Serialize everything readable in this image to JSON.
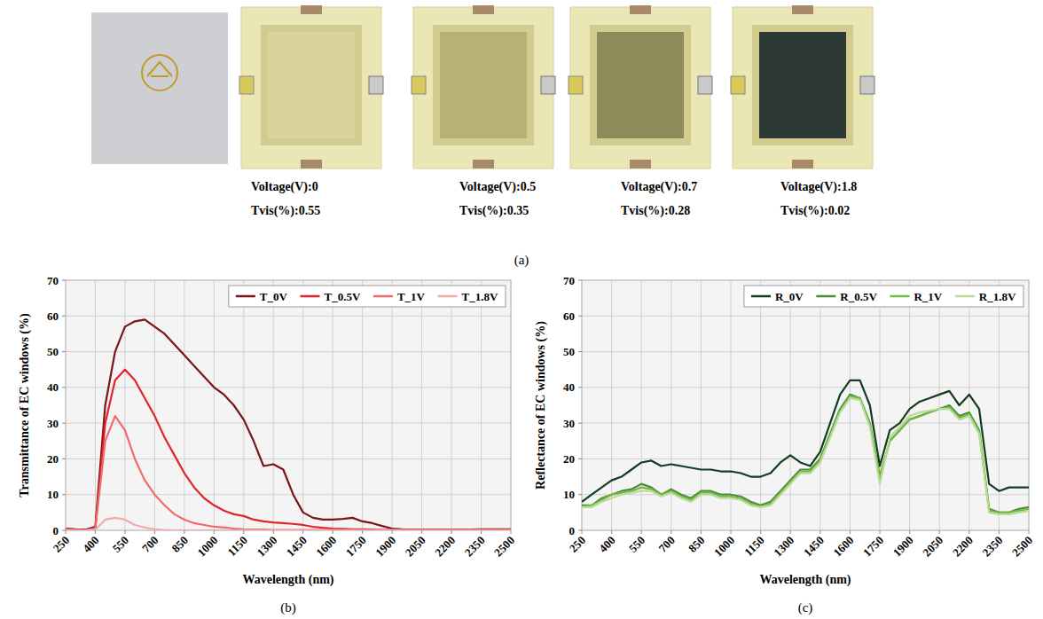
{
  "photos": {
    "caption": "(a)",
    "items": [
      {
        "voltage": "Voltage(V):0",
        "tvis": "Tvis(%):0.55"
      },
      {
        "voltage": "Voltage(V):0.5",
        "tvis": "Tvis(%):0.35"
      },
      {
        "voltage": "Voltage(V):0.7",
        "tvis": "Tvis(%):0.28"
      },
      {
        "voltage": "Voltage(V):1.8",
        "tvis": "Tvis(%):0.02"
      }
    ]
  },
  "chart_data": [
    {
      "type": "line",
      "caption": "(b)",
      "x_label": "Wavelength (nm)",
      "y_label": "Transmittance of EC windows (%)",
      "x": [
        250,
        300,
        350,
        400,
        450,
        500,
        550,
        600,
        650,
        700,
        750,
        800,
        850,
        900,
        950,
        1000,
        1050,
        1100,
        1150,
        1200,
        1250,
        1300,
        1350,
        1400,
        1450,
        1500,
        1550,
        1600,
        1650,
        1700,
        1750,
        1800,
        1850,
        1900,
        1950,
        2000,
        2050,
        2100,
        2150,
        2200,
        2250,
        2300,
        2350,
        2400,
        2450,
        2500
      ],
      "xlim": [
        250,
        2500
      ],
      "xticks": [
        250,
        400,
        550,
        700,
        850,
        1000,
        1150,
        1300,
        1450,
        1600,
        1750,
        1900,
        2050,
        2200,
        2350,
        2500
      ],
      "ylim": [
        0,
        70
      ],
      "yticks": [
        0,
        10,
        20,
        30,
        40,
        50,
        60,
        70
      ],
      "grid": true,
      "legend": "top-right",
      "series": [
        {
          "name": "T_0V",
          "color": "#7a1416",
          "values": [
            0.5,
            0.3,
            0.2,
            1,
            35,
            50,
            57,
            58.5,
            59,
            57,
            55,
            52,
            49,
            46,
            43,
            40,
            38,
            35,
            31,
            25,
            18,
            18.5,
            17,
            10,
            5,
            3.5,
            3,
            3,
            3.2,
            3.5,
            2.5,
            2,
            1.2,
            0.5,
            0.3,
            0.2,
            0.2,
            0.2,
            0.2,
            0.2,
            0.2,
            0.2,
            0.3,
            0.3,
            0.3,
            0.3
          ]
        },
        {
          "name": "T_0.5V",
          "color": "#e3222b",
          "values": [
            0.5,
            0.2,
            0.1,
            0.5,
            30,
            42,
            45,
            42,
            37,
            32,
            26,
            21,
            16,
            12,
            9,
            7,
            5.5,
            4.5,
            4,
            3,
            2.5,
            2.2,
            2,
            1.8,
            1.5,
            1,
            0.7,
            0.5,
            0.4,
            0.3,
            0.3,
            0.2,
            0.1,
            0.1,
            0.1,
            0.1,
            0.1,
            0.1,
            0.1,
            0.1,
            0.1,
            0.1,
            0.1,
            0.1,
            0.1,
            0.1
          ]
        },
        {
          "name": "T_1V",
          "color": "#f06b6b",
          "values": [
            0.3,
            0.1,
            0,
            0.5,
            25,
            32,
            28,
            20,
            14,
            10,
            7,
            4.5,
            3,
            2,
            1.5,
            1,
            0.8,
            0.5,
            0.3,
            0.2,
            0.2,
            0.1,
            0.1,
            0.1,
            0.1,
            0.1,
            0.1,
            0.1,
            0.1,
            0.1,
            0.1,
            0.1,
            0.1,
            0.1,
            0.1,
            0.1,
            0.1,
            0.1,
            0.1,
            0.1,
            0.1,
            0.1,
            0.1,
            0.1,
            0.1,
            0.1
          ]
        },
        {
          "name": "T_1.8V",
          "color": "#f4a9a9",
          "values": [
            0,
            0,
            0,
            0.2,
            3,
            3.5,
            3,
            1.5,
            0.8,
            0.3,
            0.1,
            0,
            0,
            0,
            0,
            0,
            0,
            0,
            0,
            0,
            0,
            0,
            0,
            0,
            0,
            0,
            0,
            0,
            0,
            0,
            0,
            0,
            0,
            0,
            0,
            0,
            0,
            0,
            0,
            0,
            0,
            0,
            0,
            0,
            0,
            0
          ]
        }
      ]
    },
    {
      "type": "line",
      "caption": "(c)",
      "x_label": "Wavelength (nm)",
      "y_label": "Reflectance of EC windows (%)",
      "x": [
        250,
        300,
        350,
        400,
        450,
        500,
        550,
        600,
        650,
        700,
        750,
        800,
        850,
        900,
        950,
        1000,
        1050,
        1100,
        1150,
        1200,
        1250,
        1300,
        1350,
        1400,
        1450,
        1500,
        1550,
        1600,
        1650,
        1700,
        1750,
        1800,
        1850,
        1900,
        1950,
        2000,
        2050,
        2100,
        2150,
        2200,
        2250,
        2300,
        2350,
        2400,
        2450,
        2500
      ],
      "xlim": [
        250,
        2500
      ],
      "xticks": [
        250,
        400,
        550,
        700,
        850,
        1000,
        1150,
        1300,
        1450,
        1600,
        1750,
        1900,
        2050,
        2200,
        2350,
        2500
      ],
      "ylim": [
        0,
        70
      ],
      "yticks": [
        0,
        10,
        20,
        30,
        40,
        50,
        60,
        70
      ],
      "grid": true,
      "legend": "top-right",
      "series": [
        {
          "name": "R_0V",
          "color": "#123d1f",
          "values": [
            8,
            10,
            12,
            14,
            15,
            17,
            19,
            19.5,
            18,
            18.5,
            18,
            17.5,
            17,
            17,
            16.5,
            16.5,
            16,
            15,
            15,
            16,
            19,
            21,
            19,
            18,
            22,
            30,
            38,
            42,
            42,
            35,
            18,
            28,
            30,
            34,
            36,
            37,
            38,
            39,
            35,
            38,
            34,
            13,
            11,
            12,
            12,
            12
          ]
        },
        {
          "name": "R_0.5V",
          "color": "#4d8b3b",
          "values": [
            7,
            7,
            9,
            10,
            11,
            11.5,
            13,
            12,
            10,
            11.5,
            10,
            9,
            11,
            11,
            10,
            10,
            9.5,
            8,
            7,
            8,
            11,
            14,
            17,
            17,
            20,
            27,
            34,
            38,
            37,
            30,
            15,
            25,
            28,
            31,
            32,
            33,
            34,
            35,
            32,
            33,
            28,
            6,
            5,
            5,
            6,
            6.5
          ]
        },
        {
          "name": "R_1V",
          "color": "#73b944",
          "values": [
            6.5,
            7,
            8.5,
            10,
            10.5,
            11,
            12,
            11.5,
            10,
            11,
            9.5,
            8.5,
            10.5,
            10.5,
            9.5,
            9.5,
            9,
            7.5,
            6.5,
            7.5,
            10.5,
            13.5,
            16.5,
            16.5,
            19.5,
            26.5,
            33.5,
            37.5,
            37,
            29.5,
            14.5,
            25,
            28,
            31,
            32,
            33,
            34,
            34.5,
            31.5,
            32.5,
            27.5,
            5.5,
            5,
            5,
            5.5,
            6
          ]
        },
        {
          "name": "R_1.8V",
          "color": "#b8db98",
          "values": [
            6.5,
            6.5,
            8,
            9,
            10,
            10.5,
            11,
            11,
            9.5,
            10.5,
            9,
            8,
            10,
            10,
            9,
            9,
            8.5,
            7,
            6.5,
            7,
            10,
            13,
            16,
            16,
            19,
            26,
            33,
            37,
            36.5,
            29,
            13,
            26,
            29,
            32,
            33,
            33.5,
            34,
            34,
            31,
            32,
            27,
            5,
            4.5,
            4.5,
            5,
            5.5
          ]
        }
      ]
    }
  ]
}
